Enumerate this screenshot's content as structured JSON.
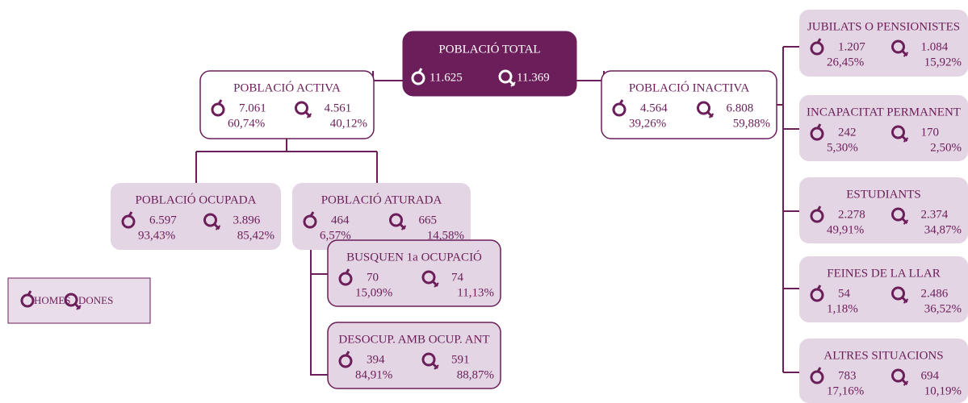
{
  "nodes": [
    {
      "title": "POBLACIÓ TOTAL",
      "men": "11.625",
      "women": "11.369"
    },
    {
      "title": "POBLACIÓ ACTIVA",
      "men": "7.061",
      "men_pct": "60,74%",
      "women": "4.561",
      "women_pct": "40,12%"
    },
    {
      "title": "POBLACIÓ INACTIVA",
      "men": "4.564",
      "men_pct": "39,26%",
      "women": "6.808",
      "women_pct": "59,88%"
    },
    {
      "title": "POBLACIÓ OCUPADA",
      "men": "6.597",
      "men_pct": "93,43%",
      "women": "3.896",
      "women_pct": "85,42%"
    },
    {
      "title": "POBLACIÓ ATURADA",
      "men": "464",
      "men_pct": "6,57%",
      "women": "665",
      "women_pct": "14,58%"
    },
    {
      "title": "BUSQUEN 1a OCUPACIÓ",
      "men": "70",
      "men_pct": "15,09%",
      "women": "74",
      "women_pct": "11,13%"
    },
    {
      "title": "DESOCUP. AMB OCUP. ANT",
      "men": "394",
      "men_pct": "84,91%",
      "women": "591",
      "women_pct": "88,87%"
    },
    {
      "title": "JUBILATS O PENSIONISTES",
      "men": "1.207",
      "men_pct": "26,45%",
      "women": "1.084",
      "women_pct": "15,92%"
    },
    {
      "title": "INCAPACITAT PERMANENT",
      "men": "242",
      "men_pct": "5,30%",
      "women": "170",
      "women_pct": "2,50%"
    },
    {
      "title": "ESTUDIANTS",
      "men": "2.278",
      "men_pct": "49,91%",
      "women": "2.374",
      "women_pct": "34,87%"
    },
    {
      "title": "FEINES DE LA LLAR",
      "men": "54",
      "men_pct": "1,18%",
      "women": "2.486",
      "women_pct": "36,52%"
    },
    {
      "title": "ALTRES SITUACIONS",
      "men": "783",
      "men_pct": "17,16%",
      "women": "694",
      "women_pct": "10,19%"
    }
  ],
  "legend": {
    "men": "HOMES",
    "women": "DONES"
  }
}
